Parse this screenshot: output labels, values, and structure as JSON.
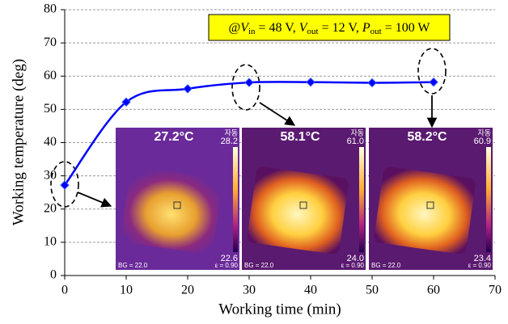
{
  "chart_data": {
    "type": "line",
    "x_label": "Working time (min)",
    "y_label": "Working temperature (deg)",
    "x": [
      0,
      10,
      20,
      30,
      40,
      50,
      60
    ],
    "values": [
      27.2,
      52.2,
      56.2,
      58.1,
      58.2,
      58.0,
      58.2
    ],
    "color": "#0000ff",
    "xlim": [
      0,
      70
    ],
    "xticks": [
      0,
      10,
      20,
      30,
      40,
      50,
      60,
      70
    ],
    "ylim": [
      0,
      80
    ],
    "yticks": [
      0,
      10,
      20,
      30,
      40,
      50,
      60,
      70,
      80
    ],
    "grid": true,
    "annotation": {
      "prefix": "@",
      "separator": ", ",
      "terms": [
        {
          "var": "V",
          "sub": "in",
          "rest": " = 48 V"
        },
        {
          "var": "V",
          "sub": "out",
          "rest": " = 12 V"
        },
        {
          "var": "P",
          "sub": "out",
          "rest": " = 100 W"
        }
      ]
    },
    "thermal_images": [
      {
        "temp": "27.2°C",
        "mode": "자동",
        "max": "28.2",
        "min": "22.6",
        "bg": "BG = 22.0",
        "emissivity": "ε = 0.90"
      },
      {
        "temp": "58.1°C",
        "mode": "자동",
        "max": "61.0",
        "min": "24.0",
        "bg": "BG = 22.0",
        "emissivity": "ε = 0.90"
      },
      {
        "temp": "58.2°C",
        "mode": "자동",
        "max": "60.9",
        "min": "23.4",
        "bg": "BG = 22.0",
        "emissivity": "ε = 0.90"
      }
    ]
  }
}
